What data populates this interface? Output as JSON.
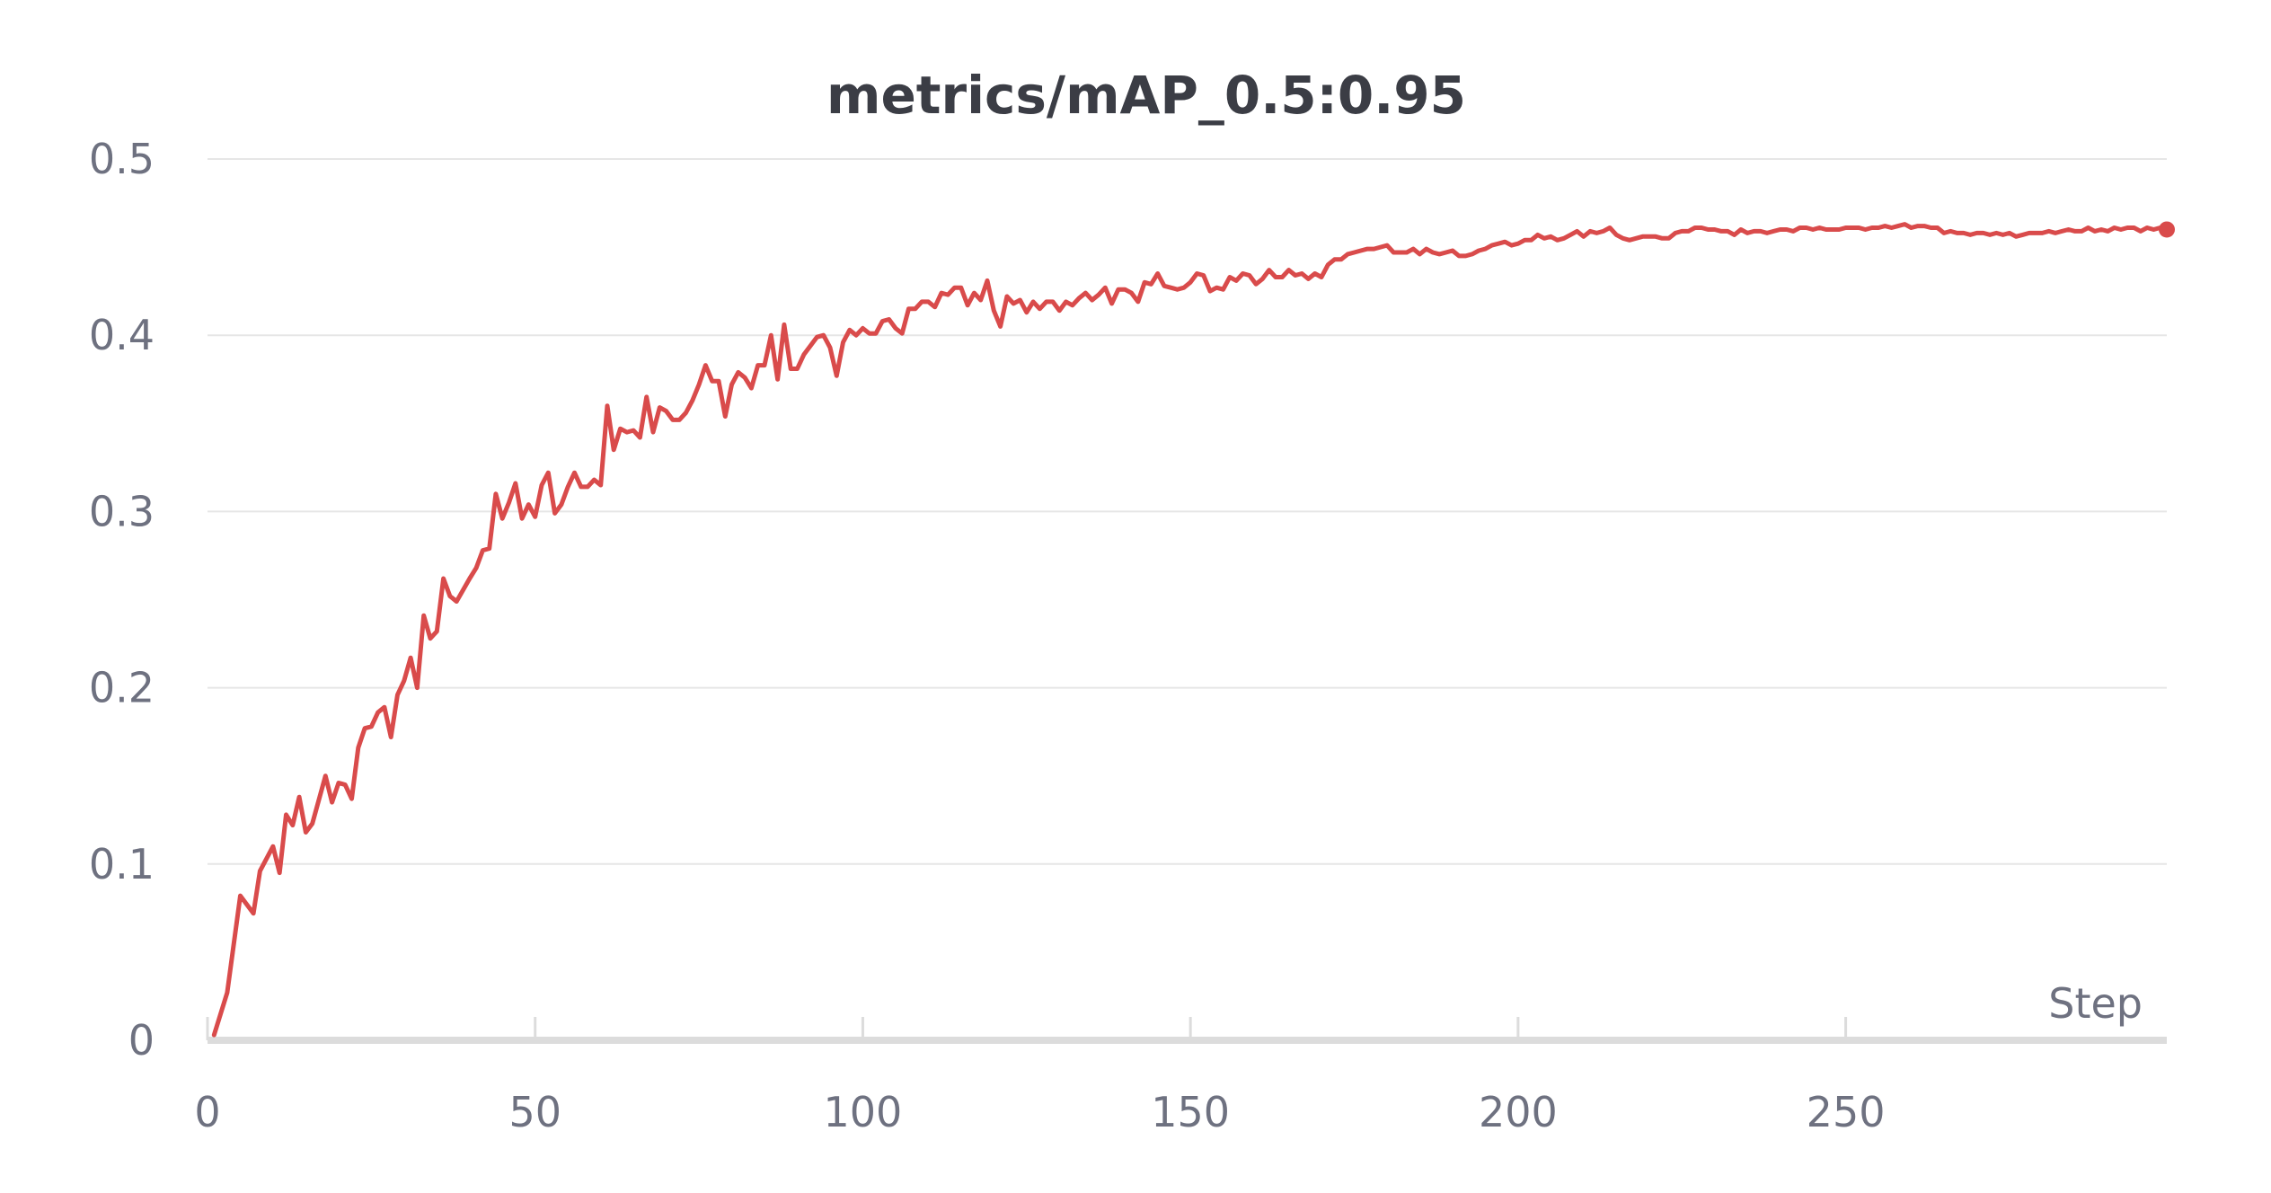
{
  "chart_data": {
    "type": "line",
    "title": "metrics/mAP_0.5:0.95",
    "xlabel": "Step",
    "ylabel": "",
    "xlim": [
      0,
      299
    ],
    "ylim": [
      0,
      0.5
    ],
    "x_ticks": [
      0,
      50,
      100,
      150,
      200,
      250
    ],
    "y_ticks": [
      0,
      0.1,
      0.2,
      0.3,
      0.4,
      0.5
    ],
    "y_tick_labels": [
      "0",
      "0.1",
      "0.2",
      "0.3",
      "0.4",
      "0.5"
    ],
    "x_tick_labels": [
      "0",
      "50",
      "100",
      "150",
      "200",
      "250"
    ],
    "grid": true,
    "legend": "none",
    "colors": {
      "series": "#d94b4b"
    },
    "series": [
      {
        "values": [
          [
            1,
            0.003
          ],
          [
            3,
            0.027
          ],
          [
            5,
            0.082
          ],
          [
            7,
            0.072
          ],
          [
            8,
            0.096
          ],
          [
            10,
            0.11
          ],
          [
            11,
            0.095
          ],
          [
            12,
            0.128
          ],
          [
            13,
            0.122
          ],
          [
            14,
            0.138
          ],
          [
            15,
            0.118
          ],
          [
            16,
            0.123
          ],
          [
            18,
            0.15
          ],
          [
            19,
            0.135
          ],
          [
            20,
            0.146
          ],
          [
            21,
            0.145
          ],
          [
            22,
            0.137
          ],
          [
            23,
            0.166
          ],
          [
            24,
            0.177
          ],
          [
            25,
            0.178
          ],
          [
            26,
            0.186
          ],
          [
            27,
            0.189
          ],
          [
            28,
            0.172
          ],
          [
            29,
            0.196
          ],
          [
            30,
            0.204
          ],
          [
            31,
            0.217
          ],
          [
            32,
            0.2
          ],
          [
            33,
            0.241
          ],
          [
            34,
            0.228
          ],
          [
            35,
            0.232
          ],
          [
            36,
            0.262
          ],
          [
            37,
            0.252
          ],
          [
            38,
            0.249
          ],
          [
            40,
            0.262
          ],
          [
            41,
            0.268
          ],
          [
            42,
            0.278
          ],
          [
            43,
            0.279
          ],
          [
            44,
            0.31
          ],
          [
            45,
            0.296
          ],
          [
            46,
            0.305
          ],
          [
            47,
            0.316
          ],
          [
            48,
            0.296
          ],
          [
            49,
            0.304
          ],
          [
            50,
            0.297
          ],
          [
            51,
            0.315
          ],
          [
            52,
            0.322
          ],
          [
            53,
            0.299
          ],
          [
            54,
            0.304
          ],
          [
            55,
            0.314
          ],
          [
            56,
            0.322
          ],
          [
            57,
            0.314
          ],
          [
            58,
            0.314
          ],
          [
            59,
            0.318
          ],
          [
            60,
            0.315
          ],
          [
            61,
            0.36
          ],
          [
            62,
            0.335
          ],
          [
            63,
            0.347
          ],
          [
            64,
            0.345
          ],
          [
            65,
            0.346
          ],
          [
            66,
            0.342
          ],
          [
            67,
            0.365
          ],
          [
            68,
            0.345
          ],
          [
            69,
            0.359
          ],
          [
            70,
            0.357
          ],
          [
            71,
            0.352
          ],
          [
            72,
            0.352
          ],
          [
            73,
            0.356
          ],
          [
            74,
            0.363
          ],
          [
            75,
            0.372
          ],
          [
            76,
            0.383
          ],
          [
            77,
            0.374
          ],
          [
            78,
            0.374
          ],
          [
            79,
            0.354
          ],
          [
            80,
            0.372
          ],
          [
            81,
            0.379
          ],
          [
            82,
            0.376
          ],
          [
            83,
            0.37
          ],
          [
            84,
            0.383
          ],
          [
            85,
            0.383
          ],
          [
            86,
            0.4
          ],
          [
            87,
            0.375
          ],
          [
            88,
            0.406
          ],
          [
            89,
            0.381
          ],
          [
            90,
            0.381
          ],
          [
            91,
            0.389
          ],
          [
            92,
            0.394
          ],
          [
            93,
            0.399
          ],
          [
            94,
            0.4
          ],
          [
            95,
            0.393
          ],
          [
            96,
            0.377
          ],
          [
            97,
            0.396
          ],
          [
            98,
            0.403
          ],
          [
            99,
            0.4
          ],
          [
            100,
            0.404
          ],
          [
            101,
            0.401
          ],
          [
            102,
            0.401
          ],
          [
            103,
            0.408
          ],
          [
            104,
            0.409
          ],
          [
            105,
            0.404
          ],
          [
            106,
            0.401
          ],
          [
            107,
            0.415
          ],
          [
            108,
            0.415
          ],
          [
            109,
            0.419
          ],
          [
            110,
            0.419
          ],
          [
            111,
            0.416
          ],
          [
            112,
            0.424
          ],
          [
            113,
            0.423
          ],
          [
            114,
            0.427
          ],
          [
            115,
            0.427
          ],
          [
            116,
            0.417
          ],
          [
            117,
            0.424
          ],
          [
            118,
            0.42
          ],
          [
            119,
            0.431
          ],
          [
            120,
            0.414
          ],
          [
            121,
            0.405
          ],
          [
            122,
            0.422
          ],
          [
            123,
            0.418
          ],
          [
            124,
            0.42
          ],
          [
            125,
            0.413
          ],
          [
            126,
            0.419
          ],
          [
            127,
            0.415
          ],
          [
            128,
            0.419
          ],
          [
            129,
            0.419
          ],
          [
            130,
            0.414
          ],
          [
            131,
            0.419
          ],
          [
            132,
            0.417
          ],
          [
            133,
            0.421
          ],
          [
            134,
            0.424
          ],
          [
            135,
            0.42
          ],
          [
            136,
            0.423
          ],
          [
            137,
            0.427
          ],
          [
            138,
            0.418
          ],
          [
            139,
            0.426
          ],
          [
            140,
            0.426
          ],
          [
            141,
            0.424
          ],
          [
            142,
            0.419
          ],
          [
            143,
            0.43
          ],
          [
            144,
            0.429
          ],
          [
            145,
            0.435
          ],
          [
            146,
            0.428
          ],
          [
            147,
            0.427
          ],
          [
            148,
            0.426
          ],
          [
            149,
            0.427
          ],
          [
            150,
            0.43
          ],
          [
            151,
            0.435
          ],
          [
            152,
            0.434
          ],
          [
            153,
            0.425
          ],
          [
            154,
            0.427
          ],
          [
            155,
            0.426
          ],
          [
            156,
            0.433
          ],
          [
            157,
            0.431
          ],
          [
            158,
            0.435
          ],
          [
            159,
            0.434
          ],
          [
            160,
            0.429
          ],
          [
            161,
            0.432
          ],
          [
            162,
            0.437
          ],
          [
            163,
            0.433
          ],
          [
            164,
            0.433
          ],
          [
            165,
            0.437
          ],
          [
            166,
            0.434
          ],
          [
            167,
            0.435
          ],
          [
            168,
            0.432
          ],
          [
            169,
            0.435
          ],
          [
            170,
            0.433
          ],
          [
            171,
            0.44
          ],
          [
            172,
            0.443
          ],
          [
            173,
            0.443
          ],
          [
            174,
            0.446
          ],
          [
            175,
            0.447
          ],
          [
            176,
            0.448
          ],
          [
            177,
            0.449
          ],
          [
            178,
            0.449
          ],
          [
            179,
            0.45
          ],
          [
            180,
            0.451
          ],
          [
            181,
            0.447
          ],
          [
            182,
            0.447
          ],
          [
            183,
            0.447
          ],
          [
            184,
            0.449
          ],
          [
            185,
            0.446
          ],
          [
            186,
            0.449
          ],
          [
            187,
            0.447
          ],
          [
            188,
            0.446
          ],
          [
            189,
            0.447
          ],
          [
            190,
            0.448
          ],
          [
            191,
            0.445
          ],
          [
            192,
            0.445
          ],
          [
            193,
            0.446
          ],
          [
            194,
            0.448
          ],
          [
            195,
            0.449
          ],
          [
            196,
            0.451
          ],
          [
            197,
            0.452
          ],
          [
            198,
            0.453
          ],
          [
            199,
            0.451
          ],
          [
            200,
            0.452
          ],
          [
            201,
            0.454
          ],
          [
            202,
            0.454
          ],
          [
            203,
            0.457
          ],
          [
            204,
            0.455
          ],
          [
            205,
            0.456
          ],
          [
            206,
            0.454
          ],
          [
            207,
            0.455
          ],
          [
            208,
            0.457
          ],
          [
            209,
            0.459
          ],
          [
            210,
            0.456
          ],
          [
            211,
            0.459
          ],
          [
            212,
            0.458
          ],
          [
            213,
            0.459
          ],
          [
            214,
            0.461
          ],
          [
            215,
            0.457
          ],
          [
            216,
            0.455
          ],
          [
            217,
            0.454
          ],
          [
            218,
            0.455
          ],
          [
            219,
            0.456
          ],
          [
            220,
            0.456
          ],
          [
            221,
            0.456
          ],
          [
            222,
            0.455
          ],
          [
            223,
            0.455
          ],
          [
            224,
            0.458
          ],
          [
            225,
            0.459
          ],
          [
            226,
            0.459
          ],
          [
            227,
            0.461
          ],
          [
            228,
            0.461
          ],
          [
            229,
            0.46
          ],
          [
            230,
            0.46
          ],
          [
            231,
            0.459
          ],
          [
            232,
            0.459
          ],
          [
            233,
            0.457
          ],
          [
            234,
            0.46
          ],
          [
            235,
            0.458
          ],
          [
            236,
            0.459
          ],
          [
            237,
            0.459
          ],
          [
            238,
            0.458
          ],
          [
            239,
            0.459
          ],
          [
            240,
            0.46
          ],
          [
            241,
            0.46
          ],
          [
            242,
            0.459
          ],
          [
            243,
            0.461
          ],
          [
            244,
            0.461
          ],
          [
            245,
            0.46
          ],
          [
            246,
            0.461
          ],
          [
            247,
            0.46
          ],
          [
            248,
            0.46
          ],
          [
            249,
            0.46
          ],
          [
            250,
            0.461
          ],
          [
            251,
            0.461
          ],
          [
            252,
            0.461
          ],
          [
            253,
            0.46
          ],
          [
            254,
            0.461
          ],
          [
            255,
            0.461
          ],
          [
            256,
            0.462
          ],
          [
            257,
            0.461
          ],
          [
            258,
            0.462
          ],
          [
            259,
            0.463
          ],
          [
            260,
            0.461
          ],
          [
            261,
            0.462
          ],
          [
            262,
            0.462
          ],
          [
            263,
            0.461
          ],
          [
            264,
            0.461
          ],
          [
            265,
            0.458
          ],
          [
            266,
            0.459
          ],
          [
            267,
            0.458
          ],
          [
            268,
            0.458
          ],
          [
            269,
            0.457
          ],
          [
            270,
            0.458
          ],
          [
            271,
            0.458
          ],
          [
            272,
            0.457
          ],
          [
            273,
            0.458
          ],
          [
            274,
            0.457
          ],
          [
            275,
            0.458
          ],
          [
            276,
            0.456
          ],
          [
            277,
            0.457
          ],
          [
            278,
            0.458
          ],
          [
            279,
            0.458
          ],
          [
            280,
            0.458
          ],
          [
            281,
            0.459
          ],
          [
            282,
            0.458
          ],
          [
            283,
            0.459
          ],
          [
            284,
            0.46
          ],
          [
            285,
            0.459
          ],
          [
            286,
            0.459
          ],
          [
            287,
            0.461
          ],
          [
            288,
            0.459
          ],
          [
            289,
            0.46
          ],
          [
            290,
            0.459
          ],
          [
            291,
            0.461
          ],
          [
            292,
            0.46
          ],
          [
            293,
            0.461
          ],
          [
            294,
            0.461
          ],
          [
            295,
            0.459
          ],
          [
            296,
            0.461
          ],
          [
            297,
            0.46
          ],
          [
            298,
            0.461
          ],
          [
            299,
            0.46
          ]
        ]
      }
    ]
  }
}
